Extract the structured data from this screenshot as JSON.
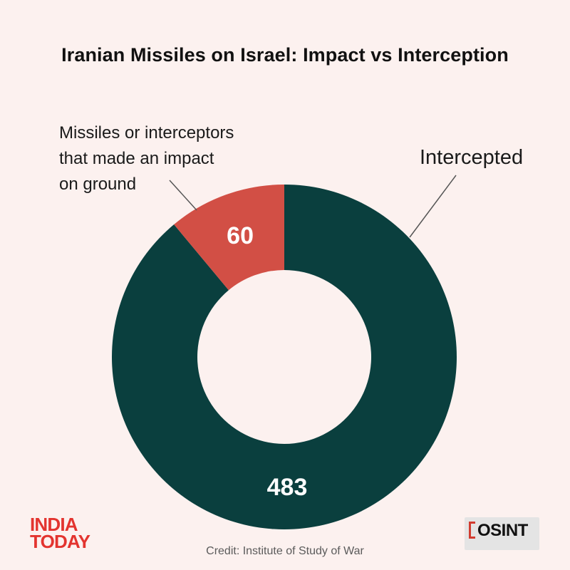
{
  "title": "Iranian Missiles on Israel: Impact vs Interception",
  "credit": "Credit: Institute of Study of War",
  "logos": {
    "india_today": "INDIA TODAY",
    "osint": "OSINT"
  },
  "colors": {
    "background": "#fcf1ef",
    "impact": "#d24f45",
    "intercepted": "#0a3f3e"
  },
  "chart_data": {
    "type": "pie",
    "variant": "donut",
    "title": "Iranian Missiles on Israel: Impact vs Interception",
    "series": [
      {
        "name": "Missiles or interceptors that made an impact on ground",
        "label_lines": [
          "Missiles or interceptors",
          "that made an impact",
          "on ground"
        ],
        "value": 60,
        "color": "#d24f45"
      },
      {
        "name": "Intercepted",
        "label_lines": [
          "Intercepted"
        ],
        "value": 483,
        "color": "#0a3f3e"
      }
    ]
  }
}
